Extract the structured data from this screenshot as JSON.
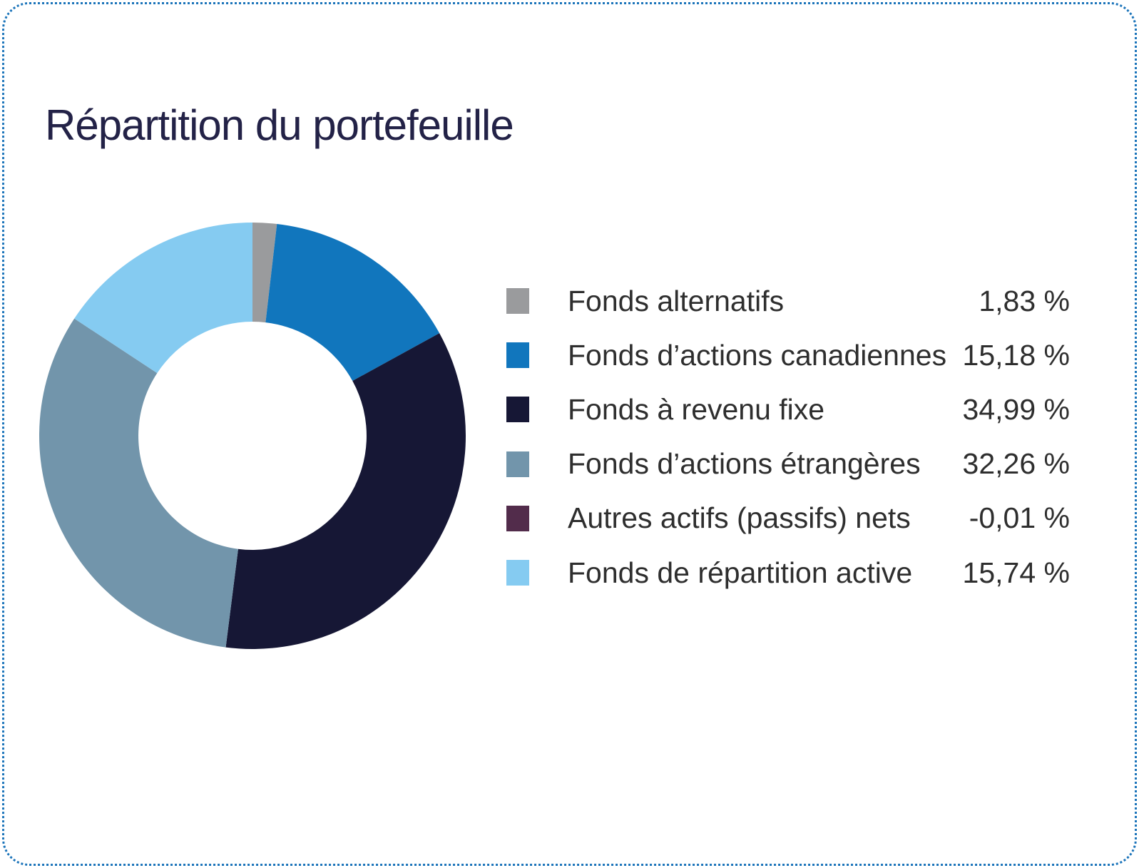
{
  "card": {
    "title": "Répartition du portefeuille",
    "title_color": "#232247",
    "border_color": "#1B74BA",
    "background_color": "#FFFFFF"
  },
  "chart_data": {
    "type": "pie",
    "subtype": "donut",
    "title": "Répartition du portefeuille",
    "start_angle_deg": 0,
    "direction": "clockwise",
    "inner_radius_ratio": 0.535,
    "legend_position": "right",
    "categories": [
      "Fonds alternatifs",
      "Fonds d’actions canadiennes",
      "Fonds à revenu fixe",
      "Fonds d’actions étrangères",
      "Autres actifs (passifs) nets",
      "Fonds de répartition active"
    ],
    "values": [
      1.83,
      15.18,
      34.99,
      32.26,
      -0.01,
      15.74
    ],
    "value_labels": [
      "1,83 %",
      "15,18 %",
      "34,99 %",
      "32,26 %",
      "-0,01 %",
      "15,74 %"
    ],
    "colors": [
      "#9A9B9D",
      "#1176BD",
      "#161735",
      "#7295AB",
      "#522C4B",
      "#85CBF1"
    ],
    "text_color": "#2E2E2E"
  }
}
